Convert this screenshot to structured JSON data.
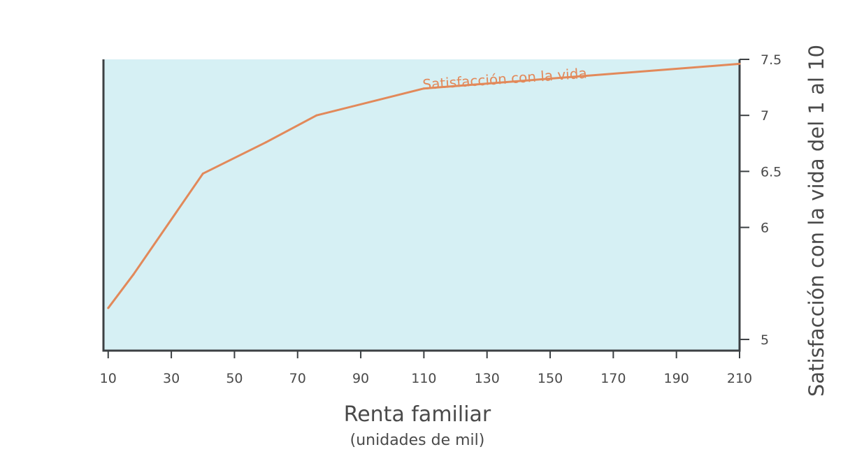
{
  "chart_data": {
    "type": "line",
    "xlabel": "Renta familiar",
    "xlabel_sub": "(unidades de mil)",
    "ylabel": "Satisfacción con la vida del 1 al 10",
    "xlim": [
      8.5,
      210
    ],
    "ylim": [
      4.9,
      7.5
    ],
    "x_ticks": [
      10,
      30,
      50,
      70,
      90,
      110,
      130,
      150,
      170,
      190,
      210
    ],
    "y_ticks": [
      5,
      6,
      6.5,
      7,
      7.5
    ],
    "y_axis_side": "right",
    "grid": false,
    "plot_background": "#d6f0f4",
    "series": [
      {
        "name": "Satisfacción con la vida",
        "color": "#e2895a",
        "x": [
          10,
          18,
          40,
          60,
          76,
          110,
          210
        ],
        "y": [
          5.28,
          5.58,
          6.48,
          6.76,
          7.0,
          7.24,
          7.46
        ]
      }
    ]
  }
}
